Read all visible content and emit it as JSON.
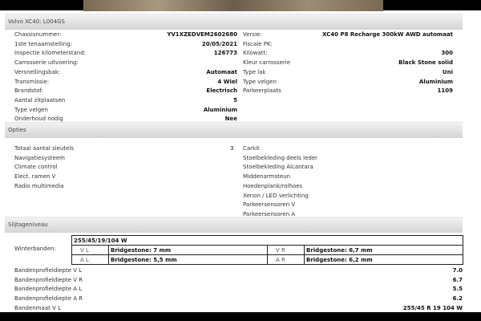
{
  "vehicle": {
    "title": "Volvo XC40: L004GS",
    "left": [
      [
        "Chassisnummer:",
        "YV1XZEDVEM2602680"
      ],
      [
        "1ste tenaamstelling:",
        "20/05/2021"
      ],
      [
        "Inspectie kilometerstand:",
        "126773"
      ],
      [
        "Carrosserie uitvoering:",
        ""
      ],
      [
        "Versnellingsbak:",
        "Automaat"
      ],
      [
        "Transmissie:",
        "4 Wiel"
      ],
      [
        "Brandstof:",
        "Electrisch"
      ],
      [
        "Aantal zitplaatsen",
        "5"
      ],
      [
        "Type velgen",
        "Aluminium"
      ],
      [
        "Onderhoud nodig",
        "Nee"
      ]
    ],
    "right": [
      [
        "Versie:",
        "XC40 P8 Recharge 300kW AWD automaat"
      ],
      [
        "Fiscale PK:",
        ""
      ],
      [
        "Kilowatt:",
        "300"
      ],
      [
        "Kleur carrosserie",
        "Black Stone solid"
      ],
      [
        "Type lak",
        "Uni"
      ],
      [
        "Type velgen",
        "Aluminium"
      ],
      [
        "Parkeerplaats",
        "1109"
      ]
    ]
  },
  "options": {
    "title": "Opties",
    "keys_label": "Totaal aantal sleutels",
    "keys_value": "3",
    "left": [
      "Navigatiesysteem",
      "Climate control",
      "Elect. ramen V",
      "Radio multimedia"
    ],
    "right": [
      "Carkit",
      "Stoelbekleding deels leder",
      "Stoelbekleding Alcantara",
      "Middenarmsteun",
      "Hoedenplank/rolhoes",
      "Xenon / LED verlichting",
      "Parkeersensoren V",
      "Parkeersensoren A"
    ]
  },
  "wear": {
    "title": "Slijtageniveau",
    "winter_label": "Winterbanden:",
    "tire_size": "255/45/19/104 W",
    "tires": {
      "vl_pos": "V L",
      "vl": "Bridgestone: 7 mm",
      "vr_pos": "V R",
      "vr": "Bridgestone: 6,7 mm",
      "al_pos": "A L",
      "al": "Bridgestone: 5,5 mm",
      "ar_pos": "A R",
      "ar": "Bridgestone: 6,2 mm"
    },
    "rows": [
      [
        "Bandenprofieldiepte V L",
        "7.0"
      ],
      [
        "Bandenprofieldiepte V R",
        "6.7"
      ],
      [
        "Bandenprofieldiepte A L",
        "5.5"
      ],
      [
        "Bandenprofieldiepte A R",
        "6.2"
      ],
      [
        "Bandenmaat V L",
        "255/45 R 19 104 W"
      ]
    ]
  }
}
